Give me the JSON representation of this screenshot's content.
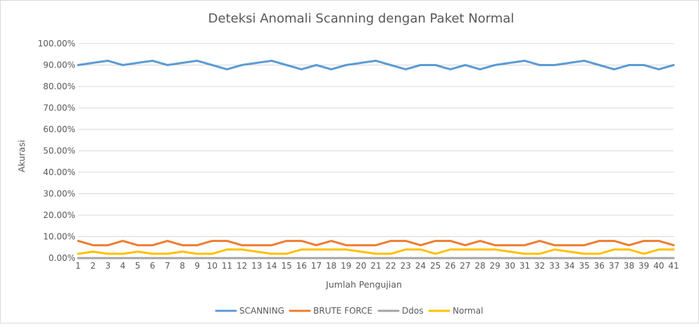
{
  "chart_data": {
    "type": "line",
    "title": "Deteksi Anomali Scanning dengan Paket Normal",
    "xlabel": "Jumlah Pengujian",
    "ylabel": "Akurasi",
    "ylim": [
      0,
      1
    ],
    "y_tick_labels": [
      "0.00%",
      "10.00%",
      "20.00%",
      "30.00%",
      "40.00%",
      "50.00%",
      "60.00%",
      "70.00%",
      "80.00%",
      "90.00%",
      "100.00%"
    ],
    "categories": [
      "1",
      "2",
      "3",
      "4",
      "5",
      "6",
      "7",
      "8",
      "9",
      "10",
      "11",
      "12",
      "13",
      "14",
      "15",
      "16",
      "17",
      "18",
      "19",
      "20",
      "21",
      "22",
      "23",
      "24",
      "25",
      "26",
      "27",
      "28",
      "29",
      "30",
      "31",
      "32",
      "33",
      "34",
      "35",
      "36",
      "37",
      "38",
      "39",
      "40",
      "41"
    ],
    "grid": true,
    "legend_position": "bottom",
    "series": [
      {
        "name": "SCANNING",
        "color": "#5B9BD5",
        "values": [
          0.9,
          0.91,
          0.92,
          0.9,
          0.91,
          0.92,
          0.9,
          0.91,
          0.92,
          0.9,
          0.88,
          0.9,
          0.91,
          0.92,
          0.9,
          0.88,
          0.9,
          0.88,
          0.9,
          0.91,
          0.92,
          0.9,
          0.88,
          0.9,
          0.9,
          0.88,
          0.9,
          0.88,
          0.9,
          0.91,
          0.92,
          0.9,
          0.9,
          0.91,
          0.92,
          0.9,
          0.88,
          0.9,
          0.9,
          0.88,
          0.9
        ]
      },
      {
        "name": "BRUTE FORCE",
        "color": "#ED7D31",
        "values": [
          0.08,
          0.06,
          0.06,
          0.08,
          0.06,
          0.06,
          0.08,
          0.06,
          0.06,
          0.08,
          0.08,
          0.06,
          0.06,
          0.06,
          0.08,
          0.08,
          0.06,
          0.08,
          0.06,
          0.06,
          0.06,
          0.08,
          0.08,
          0.06,
          0.08,
          0.08,
          0.06,
          0.08,
          0.06,
          0.06,
          0.06,
          0.08,
          0.06,
          0.06,
          0.06,
          0.08,
          0.08,
          0.06,
          0.08,
          0.08,
          0.06
        ]
      },
      {
        "name": "Ddos",
        "color": "#A5A5A5",
        "values": [
          0,
          0,
          0,
          0,
          0,
          0,
          0,
          0,
          0,
          0,
          0,
          0,
          0,
          0,
          0,
          0,
          0,
          0,
          0,
          0,
          0,
          0,
          0,
          0,
          0,
          0,
          0,
          0,
          0,
          0,
          0,
          0,
          0,
          0,
          0,
          0,
          0,
          0,
          0,
          0,
          0
        ]
      },
      {
        "name": "Normal",
        "color": "#FFC000",
        "values": [
          0.02,
          0.03,
          0.02,
          0.02,
          0.03,
          0.02,
          0.02,
          0.03,
          0.02,
          0.02,
          0.04,
          0.04,
          0.03,
          0.02,
          0.02,
          0.04,
          0.04,
          0.04,
          0.04,
          0.03,
          0.02,
          0.02,
          0.04,
          0.04,
          0.02,
          0.04,
          0.04,
          0.04,
          0.04,
          0.03,
          0.02,
          0.02,
          0.04,
          0.03,
          0.02,
          0.02,
          0.04,
          0.04,
          0.02,
          0.04,
          0.04
        ]
      }
    ]
  }
}
